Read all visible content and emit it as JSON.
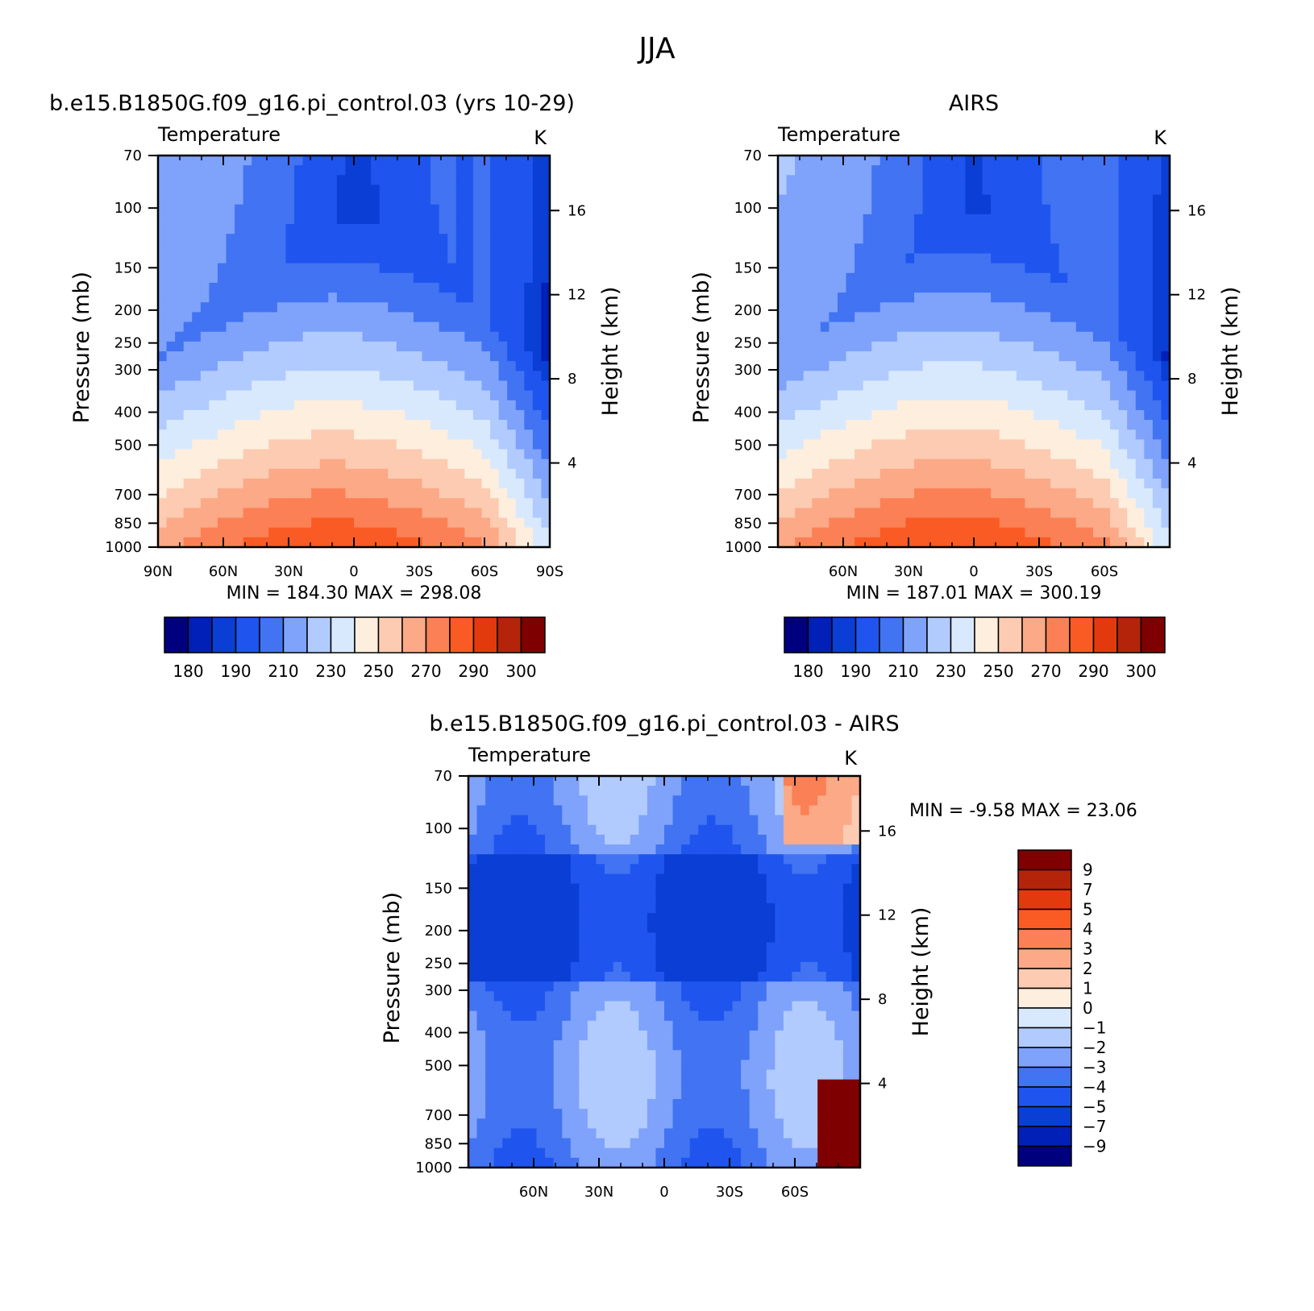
{
  "figure": {
    "title": "JJA"
  },
  "panel_titles": [
    "b.e15.B1850G.f09_g16.pi_control.03 (yrs 10-29)",
    "AIRS",
    "b.e15.B1850G.f09_g16.pi_control.03 - AIRS"
  ],
  "chart_data": [
    {
      "type": "heatmap",
      "panel": "model",
      "title": "b.e15.B1850G.f09_g16.pi_control.03 (yrs 10-29)",
      "left_label": "Temperature",
      "units": "K",
      "ylabel": "Pressure (mb)",
      "ylabel_right": "Height (km)",
      "x_ticks": [
        "90N",
        "60N",
        "30N",
        "0",
        "30S",
        "60S",
        "90S"
      ],
      "y_ticks": [
        "70",
        "100",
        "150",
        "200",
        "250",
        "300",
        "400",
        "500",
        "700",
        "850",
        "1000"
      ],
      "y_ticks_right": [
        "16",
        "12",
        "8",
        "4"
      ],
      "min": "184.30",
      "max": "298.08",
      "stats_text": "MIN = 184.30   MAX = 298.08",
      "colorbar_labels": [
        "180",
        "190",
        "210",
        "230",
        "250",
        "270",
        "290",
        "300"
      ]
    },
    {
      "type": "heatmap",
      "panel": "obs",
      "title": "AIRS",
      "left_label": "Temperature",
      "units": "K",
      "ylabel": "Pressure (mb)",
      "ylabel_right": "Height (km)",
      "x_ticks": [
        "60N",
        "30N",
        "0",
        "30S",
        "60S"
      ],
      "y_ticks": [
        "70",
        "100",
        "150",
        "200",
        "250",
        "300",
        "400",
        "500",
        "700",
        "850",
        "1000"
      ],
      "y_ticks_right": [
        "16",
        "12",
        "8",
        "4"
      ],
      "min": "187.01",
      "max": "300.19",
      "stats_text": "MIN = 187.01   MAX = 300.19",
      "colorbar_labels": [
        "180",
        "190",
        "210",
        "230",
        "250",
        "270",
        "290",
        "300"
      ]
    },
    {
      "type": "heatmap",
      "panel": "difference",
      "title": "b.e15.B1850G.f09_g16.pi_control.03 - AIRS",
      "left_label": "Temperature",
      "units": "K",
      "ylabel": "Pressure (mb)",
      "ylabel_right": "Height (km)",
      "x_ticks": [
        "60N",
        "30N",
        "0",
        "30S",
        "60S"
      ],
      "y_ticks": [
        "70",
        "100",
        "150",
        "200",
        "250",
        "300",
        "400",
        "500",
        "700",
        "850",
        "1000"
      ],
      "y_ticks_right": [
        "16",
        "12",
        "8",
        "4"
      ],
      "min": "-9.58",
      "max": "23.06",
      "stats_text": "MIN =   -9.58   MAX =   23.06",
      "colorbar_labels": [
        "9",
        "7",
        "5",
        "4",
        "3",
        "2",
        "1",
        "0",
        "-1",
        "-2",
        "-3",
        "-4",
        "-5",
        "-7",
        "-9"
      ]
    }
  ],
  "palettes": {
    "abs": [
      "#00007f",
      "#0020b8",
      "#0a3ed4",
      "#1f55ee",
      "#4173f2",
      "#7fa2fb",
      "#b1cbff",
      "#d8e9fd",
      "#fdeedd",
      "#fccbb1",
      "#fba987",
      "#fb8055",
      "#fa5a24",
      "#e33a0d",
      "#b3240b",
      "#7f0000"
    ],
    "diff": [
      "#00007f",
      "#0020b8",
      "#0a3ed4",
      "#1f55ee",
      "#4173f2",
      "#7fa2fb",
      "#b1cbff",
      "#d8e9fd",
      "#fdeedd",
      "#fccbb1",
      "#fba987",
      "#fb8055",
      "#fa5a24",
      "#e33a0d",
      "#b3240b",
      "#7f0000"
    ]
  }
}
